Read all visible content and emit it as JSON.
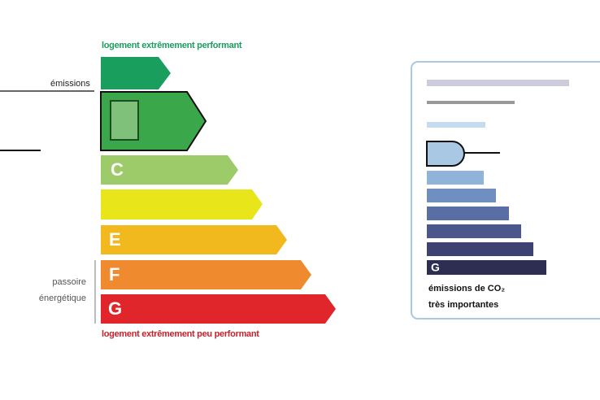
{
  "left_scale": {
    "top_caption": "logement extrêmement performant",
    "bottom_caption": "logement extrêmement peu performant",
    "side_label": "émissions",
    "passoire_lines": [
      "passoire",
      "énergétique"
    ],
    "rows": [
      {
        "letter": "C"
      },
      {
        "letter": "E"
      },
      {
        "letter": "F"
      },
      {
        "letter": "G"
      }
    ]
  },
  "right_panel": {
    "last_letter": "G",
    "caption_lines": [
      "émissions de CO₂",
      "très importantes"
    ]
  }
}
